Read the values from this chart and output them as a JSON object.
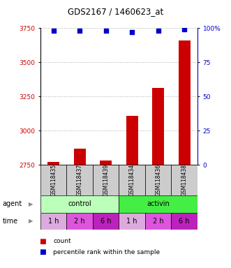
{
  "title": "GDS2167 / 1460623_at",
  "samples": [
    "GSM118435",
    "GSM118437",
    "GSM118439",
    "GSM118434",
    "GSM118436",
    "GSM118438"
  ],
  "count_values": [
    2770,
    2870,
    2780,
    3110,
    3310,
    3660
  ],
  "percentile_values": [
    98,
    98,
    98,
    97,
    98,
    99
  ],
  "ylim_left": [
    2750,
    3750
  ],
  "ylim_right": [
    0,
    100
  ],
  "yticks_left": [
    2750,
    3000,
    3250,
    3500,
    3750
  ],
  "yticks_right": [
    0,
    25,
    50,
    75,
    100
  ],
  "ytick_labels_right": [
    "0",
    "25",
    "50",
    "75",
    "100%"
  ],
  "bar_color": "#cc0000",
  "dot_color": "#0000cc",
  "agent_labels": [
    "control",
    "activin"
  ],
  "agent_light_color": "#bbffbb",
  "agent_dark_color": "#44ee44",
  "time_colors": [
    "#ddaadd",
    "#dd55dd",
    "#bb22bb",
    "#ddaadd",
    "#dd55dd",
    "#bb22bb"
  ],
  "time_labels": [
    "1 h",
    "2 h",
    "6 h",
    "1 h",
    "2 h",
    "6 h"
  ],
  "gsm_bg": "#cccccc",
  "bar_bottom": 2750,
  "grid_color": "#aaaaaa",
  "legend_count_color": "#cc0000",
  "legend_pct_color": "#0000cc"
}
